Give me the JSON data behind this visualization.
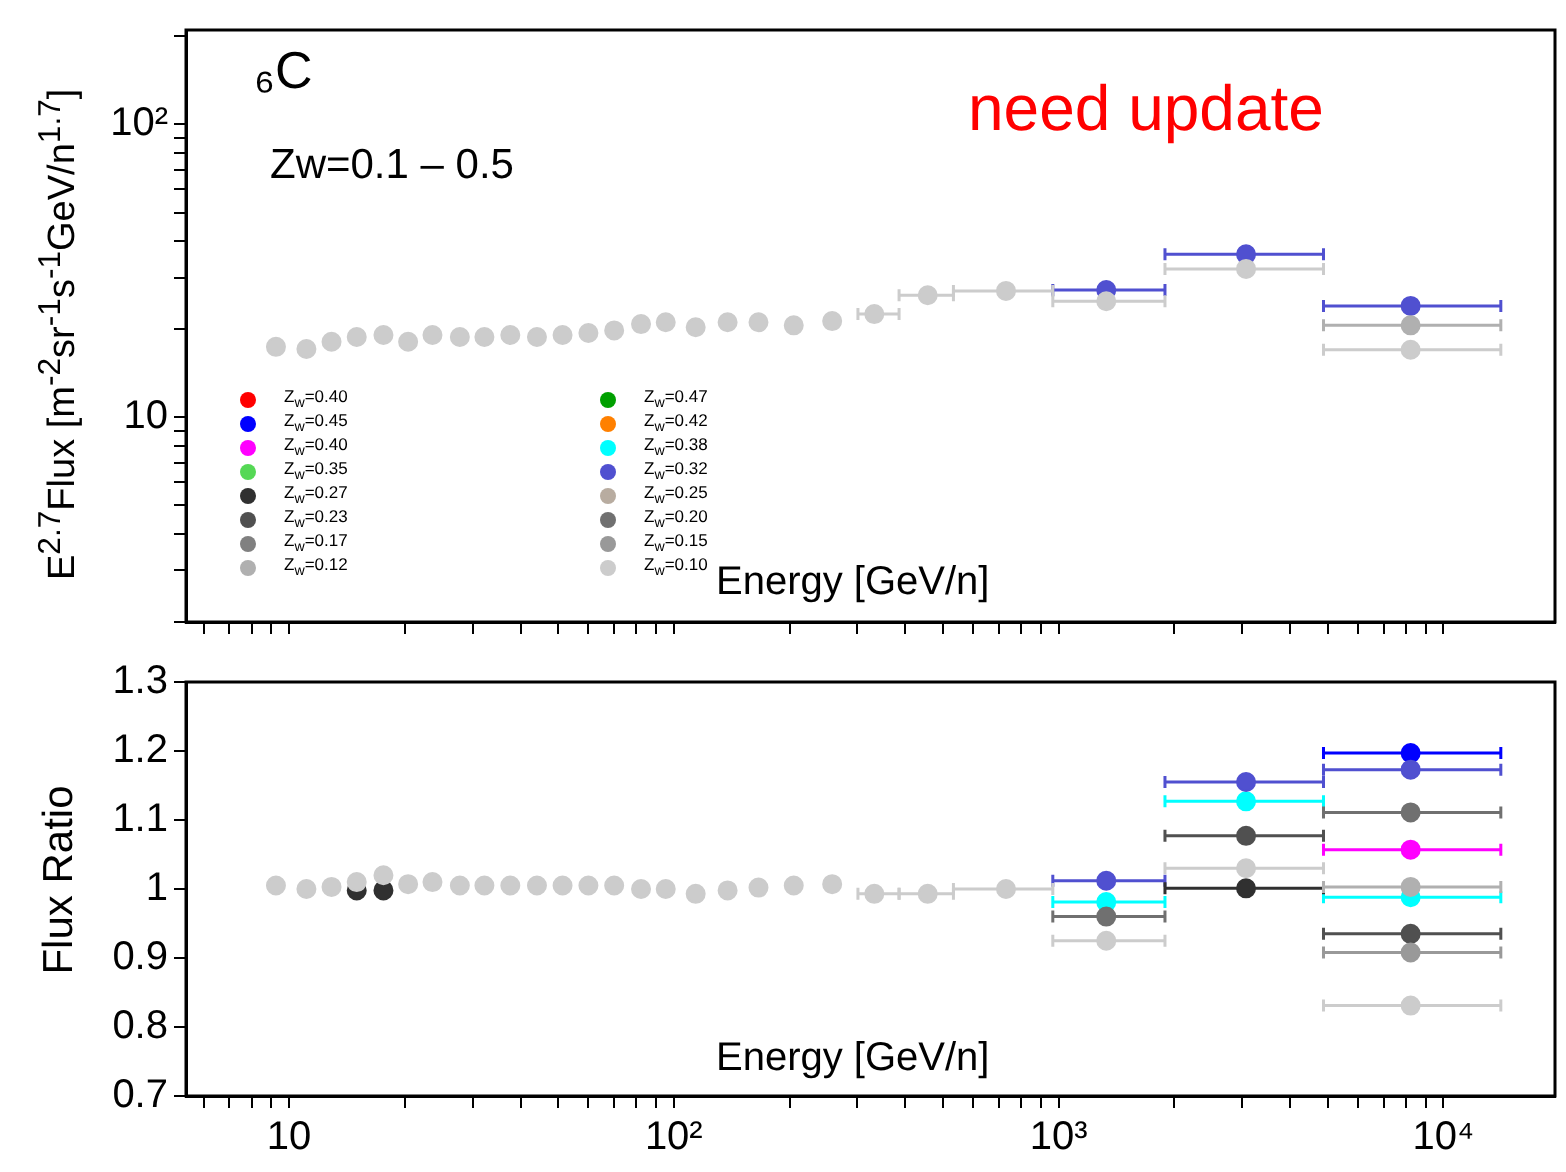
{
  "chart_data": [
    {
      "type": "scatter",
      "xlabel": "Energy [GeV/n]",
      "ylabel": "E$^{2.7}$Flux [m$^{-2}$sr$^{-1}$s$^{-1}$GeV/n$^{1.7}$]",
      "annotations": [
        "₆C",
        "Zw=0.1 – 0.5",
        "need update"
      ],
      "log": "xy",
      "xlim": [
        5.4,
        19500
      ],
      "ylim": [
        2,
        210
      ],
      "tick_labels": "y",
      "legend": "bottom left",
      "marker": "circle",
      "xticks": [
        {
          "value": 6,
          "label": null
        },
        {
          "value": 7,
          "label": null
        },
        {
          "value": 8,
          "label": null
        },
        {
          "value": 9,
          "label": null
        },
        {
          "value": 10,
          "label": null
        },
        {
          "value": 20,
          "label": null
        },
        {
          "value": 30,
          "label": null
        },
        {
          "value": 40,
          "label": null
        },
        {
          "value": 50,
          "label": null
        },
        {
          "value": 60,
          "label": null
        },
        {
          "value": 70,
          "label": null
        },
        {
          "value": 80,
          "label": null
        },
        {
          "value": 90,
          "label": null
        },
        {
          "value": 100,
          "label": null
        },
        {
          "value": 200,
          "label": null
        },
        {
          "value": 300,
          "label": null
        },
        {
          "value": 400,
          "label": null
        },
        {
          "value": 500,
          "label": null
        },
        {
          "value": 600,
          "label": null
        },
        {
          "value": 700,
          "label": null
        },
        {
          "value": 800,
          "label": null
        },
        {
          "value": 900,
          "label": null
        },
        {
          "value": 1000,
          "label": null
        },
        {
          "value": 2000,
          "label": null
        },
        {
          "value": 3000,
          "label": null
        },
        {
          "value": 4000,
          "label": null
        },
        {
          "value": 5000,
          "label": null
        },
        {
          "value": 6000,
          "label": null
        },
        {
          "value": 7000,
          "label": null
        },
        {
          "value": 8000,
          "label": null
        },
        {
          "value": 9000,
          "label": null
        },
        {
          "value": 10000,
          "label": null
        }
      ],
      "yticks": [
        {
          "value": 2,
          "label": null
        },
        {
          "value": 3,
          "label": null
        },
        {
          "value": 4,
          "label": null
        },
        {
          "value": 5,
          "label": null
        },
        {
          "value": 6,
          "label": null
        },
        {
          "value": 7,
          "label": null
        },
        {
          "value": 8,
          "label": null
        },
        {
          "value": 9,
          "label": null
        },
        10,
        {
          "value": 20,
          "label": null
        },
        {
          "value": 30,
          "label": null
        },
        {
          "value": 40,
          "label": null
        },
        {
          "value": 50,
          "label": null
        },
        {
          "value": 60,
          "label": null
        },
        {
          "value": 70,
          "label": null
        },
        {
          "value": 80,
          "label": null
        },
        {
          "value": 90,
          "label": null
        },
        {
          "value": 100,
          "label": "10²"
        },
        {
          "value": 200,
          "label": null
        }
      ],
      "x": [
        9.25,
        11.1,
        12.9,
        15.0,
        17.6,
        20.4,
        23.6,
        27.8,
        32.2,
        37.6,
        44.1,
        51.4,
        60.0,
        70.0,
        82.2,
        95.3,
        114,
        138,
        166,
        205,
        258,
        332,
        457,
        730,
        1330,
        3070,
        8220
      ],
      "series": [
        {
          "name": "Z$_{w}$=0.40",
          "color": "#ff0000",
          "values": [
            null,
            null,
            null,
            null,
            null,
            null,
            null,
            null,
            null,
            null,
            null,
            null,
            null,
            null,
            null,
            null,
            null,
            null,
            null,
            null,
            null,
            null,
            null,
            null,
            null,
            null,
            null
          ]
        },
        {
          "name": "Z$_{w}$=0.47",
          "color": "#00a000",
          "values": [
            null,
            null,
            null,
            null,
            null,
            null,
            null,
            null,
            null,
            null,
            null,
            null,
            null,
            null,
            null,
            null,
            null,
            null,
            null,
            null,
            null,
            null,
            null,
            null,
            null,
            null,
            null
          ]
        },
        {
          "name": "Z$_{w}$=0.45",
          "color": "#0000ff",
          "values": [
            null,
            null,
            null,
            null,
            null,
            null,
            null,
            null,
            null,
            null,
            null,
            null,
            null,
            null,
            null,
            null,
            null,
            null,
            null,
            null,
            null,
            null,
            null,
            null,
            null,
            null,
            null
          ]
        },
        {
          "name": "Z$_{w}$=0.42",
          "color": "#ff8000",
          "values": [
            null,
            null,
            null,
            null,
            null,
            null,
            null,
            null,
            null,
            null,
            null,
            null,
            null,
            null,
            null,
            null,
            null,
            null,
            null,
            null,
            null,
            null,
            null,
            null,
            null,
            null,
            null
          ]
        },
        {
          "name": "Z$_{w}$=0.40",
          "color": "#ff00ff",
          "values": [
            null,
            null,
            null,
            null,
            null,
            null,
            null,
            null,
            null,
            null,
            null,
            null,
            null,
            null,
            null,
            null,
            null,
            null,
            null,
            null,
            null,
            null,
            null,
            null,
            null,
            null,
            null
          ]
        },
        {
          "name": "Z$_{w}$=0.38",
          "color": "#00ffff",
          "values": [
            null,
            null,
            null,
            null,
            null,
            null,
            null,
            null,
            null,
            null,
            null,
            null,
            null,
            null,
            null,
            null,
            null,
            null,
            null,
            null,
            null,
            null,
            null,
            null,
            null,
            null,
            null
          ]
        },
        {
          "name": "Z$_{w}$=0.35",
          "color": "#55d855",
          "values": [
            null,
            null,
            null,
            null,
            null,
            null,
            null,
            null,
            null,
            null,
            null,
            null,
            null,
            null,
            null,
            null,
            null,
            null,
            null,
            null,
            null,
            null,
            null,
            null,
            null,
            null,
            null
          ]
        },
        {
          "name": "Z$_{w}$=0.32",
          "color": "#5050d0",
          "values": [
            null,
            null,
            null,
            null,
            null,
            null,
            null,
            null,
            null,
            null,
            null,
            null,
            null,
            null,
            null,
            null,
            null,
            null,
            null,
            null,
            null,
            null,
            null,
            null,
            27.2,
            36.0,
            24.0
          ],
          "xerrors": [
            null,
            null,
            null,
            null,
            null,
            null,
            null,
            null,
            null,
            null,
            null,
            null,
            null,
            null,
            null,
            null,
            null,
            null,
            null,
            null,
            null,
            null,
            null,
            null,
            [
              966,
              1890
            ],
            [
              1890,
              4880
            ],
            [
              4880,
              14100
            ]
          ]
        },
        {
          "name": "Z$_{w}$=0.27",
          "color": "#303030",
          "values": [
            null,
            null,
            null,
            null,
            null,
            null,
            null,
            null,
            null,
            null,
            null,
            null,
            null,
            null,
            null,
            null,
            null,
            null,
            null,
            null,
            null,
            null,
            null,
            null,
            null,
            null,
            null
          ]
        },
        {
          "name": "Z$_{w}$=0.25",
          "color": "#b8aca0",
          "values": [
            null,
            null,
            null,
            null,
            null,
            null,
            null,
            null,
            null,
            null,
            null,
            null,
            null,
            null,
            null,
            null,
            null,
            null,
            null,
            null,
            null,
            null,
            null,
            null,
            null,
            null,
            null
          ]
        },
        {
          "name": "Z$_{w}$=0.23",
          "color": "#505050",
          "values": [
            null,
            null,
            null,
            null,
            null,
            null,
            null,
            null,
            null,
            null,
            null,
            null,
            null,
            null,
            null,
            null,
            null,
            null,
            null,
            null,
            null,
            null,
            null,
            null,
            null,
            null,
            null
          ]
        },
        {
          "name": "Z$_{w}$=0.20",
          "color": "#707070",
          "values": [
            null,
            null,
            null,
            null,
            null,
            null,
            null,
            null,
            null,
            null,
            null,
            null,
            null,
            null,
            null,
            null,
            null,
            null,
            null,
            null,
            null,
            null,
            null,
            null,
            null,
            null,
            null
          ]
        },
        {
          "name": "Z$_{w}$=0.17",
          "color": "#808080",
          "values": [
            null,
            null,
            null,
            null,
            null,
            null,
            null,
            null,
            null,
            null,
            null,
            null,
            null,
            null,
            null,
            null,
            null,
            null,
            null,
            null,
            null,
            null,
            null,
            null,
            null,
            null,
            null
          ]
        },
        {
          "name": "Z$_{w}$=0.15",
          "color": "#999999",
          "values": [
            null,
            null,
            null,
            null,
            null,
            null,
            null,
            null,
            null,
            null,
            null,
            null,
            null,
            null,
            null,
            null,
            null,
            null,
            null,
            null,
            null,
            null,
            null,
            null,
            null,
            null,
            null
          ]
        },
        {
          "name": "Z$_{w}$=0.12",
          "color": "#b0b0b0",
          "values": [
            null,
            null,
            null,
            null,
            null,
            null,
            null,
            null,
            null,
            null,
            null,
            null,
            null,
            null,
            null,
            null,
            null,
            null,
            null,
            null,
            null,
            null,
            null,
            null,
            null,
            null,
            20.6
          ],
          "xerrors": [
            null,
            null,
            null,
            null,
            null,
            null,
            null,
            null,
            null,
            null,
            null,
            null,
            null,
            null,
            null,
            null,
            null,
            null,
            null,
            null,
            null,
            null,
            null,
            null,
            null,
            null,
            [
              4880,
              14100
            ]
          ]
        },
        {
          "name": "Z$_{w}$=0.10",
          "color": "#cccccc",
          "values": [
            17.4,
            17.1,
            18.1,
            18.8,
            19.1,
            18.1,
            19.1,
            18.8,
            18.8,
            19.1,
            18.8,
            19.1,
            19.4,
            19.8,
            20.8,
            21.1,
            20.3,
            21.1,
            21.1,
            20.6,
            21.3,
            22.5,
            26.1,
            27.0,
            24.9,
            32.1,
            17.0
          ],
          "xerrors": [
            null,
            null,
            null,
            null,
            null,
            null,
            null,
            null,
            null,
            null,
            null,
            null,
            null,
            null,
            null,
            null,
            null,
            null,
            null,
            null,
            null,
            [
              301,
              385
            ],
            [
              385,
              533
            ],
            [
              533,
              966
            ],
            [
              966,
              1890
            ],
            [
              1890,
              4880
            ],
            [
              4880,
              14100
            ]
          ]
        }
      ]
    },
    {
      "type": "scatter",
      "xlabel": "Energy [GeV/n]",
      "ylabel": "Flux Ratio",
      "log": "x",
      "xlim": [
        5.4,
        19500
      ],
      "ylim": [
        0.7,
        1.3
      ],
      "marker": "circle",
      "xticks": [
        {
          "value": 6,
          "label": null
        },
        {
          "value": 7,
          "label": null
        },
        {
          "value": 8,
          "label": null
        },
        {
          "value": 9,
          "label": null
        },
        10,
        {
          "value": 20,
          "label": null
        },
        {
          "value": 30,
          "label": null
        },
        {
          "value": 40,
          "label": null
        },
        {
          "value": 50,
          "label": null
        },
        {
          "value": 60,
          "label": null
        },
        {
          "value": 70,
          "label": null
        },
        {
          "value": 80,
          "label": null
        },
        {
          "value": 90,
          "label": null
        },
        {
          "value": 100,
          "label": "10²"
        },
        {
          "value": 200,
          "label": null
        },
        {
          "value": 300,
          "label": null
        },
        {
          "value": 400,
          "label": null
        },
        {
          "value": 500,
          "label": null
        },
        {
          "value": 600,
          "label": null
        },
        {
          "value": 700,
          "label": null
        },
        {
          "value": 800,
          "label": null
        },
        {
          "value": 900,
          "label": null
        },
        {
          "value": 1000,
          "label": "10³"
        },
        {
          "value": 2000,
          "label": null
        },
        {
          "value": 3000,
          "label": null
        },
        {
          "value": 4000,
          "label": null
        },
        {
          "value": 5000,
          "label": null
        },
        {
          "value": 6000,
          "label": null
        },
        {
          "value": 7000,
          "label": null
        },
        {
          "value": 8000,
          "label": null
        },
        {
          "value": 9000,
          "label": null
        },
        {
          "value": 10000,
          "label": "10⁴"
        }
      ],
      "yticks": [
        0.7,
        0.8,
        0.9,
        1,
        1.1,
        1.2,
        1.3
      ],
      "x": [
        9.25,
        11.1,
        12.9,
        15.0,
        17.6,
        20.4,
        23.6,
        27.8,
        32.2,
        37.6,
        44.1,
        51.4,
        60.0,
        70.0,
        82.2,
        95.3,
        114,
        138,
        166,
        205,
        258,
        332,
        457,
        730,
        1330,
        3070,
        8220
      ],
      "series": [
        {
          "color": "#0000ff",
          "values": [
            null,
            null,
            null,
            null,
            null,
            null,
            null,
            null,
            null,
            null,
            null,
            null,
            null,
            null,
            null,
            null,
            null,
            null,
            null,
            null,
            null,
            null,
            null,
            null,
            null,
            null,
            1.197
          ],
          "xerrors": [
            null,
            null,
            null,
            null,
            null,
            null,
            null,
            null,
            null,
            null,
            null,
            null,
            null,
            null,
            null,
            null,
            null,
            null,
            null,
            null,
            null,
            null,
            null,
            null,
            null,
            null,
            [
              4880,
              14100
            ]
          ]
        },
        {
          "color": "#ff00ff",
          "values": [
            null,
            null,
            null,
            null,
            null,
            null,
            null,
            null,
            null,
            null,
            null,
            null,
            null,
            null,
            null,
            null,
            null,
            null,
            null,
            null,
            null,
            null,
            null,
            null,
            null,
            null,
            1.057
          ],
          "xerrors": [
            null,
            null,
            null,
            null,
            null,
            null,
            null,
            null,
            null,
            null,
            null,
            null,
            null,
            null,
            null,
            null,
            null,
            null,
            null,
            null,
            null,
            null,
            null,
            null,
            null,
            null,
            [
              4880,
              14100
            ]
          ]
        },
        {
          "color": "#00ffff",
          "values": [
            null,
            null,
            null,
            null,
            null,
            null,
            null,
            null,
            null,
            null,
            null,
            null,
            null,
            null,
            null,
            null,
            null,
            null,
            null,
            null,
            null,
            null,
            null,
            null,
            0.981,
            1.127,
            0.988
          ],
          "xerrors": [
            null,
            null,
            null,
            null,
            null,
            null,
            null,
            null,
            null,
            null,
            null,
            null,
            null,
            null,
            null,
            null,
            null,
            null,
            null,
            null,
            null,
            null,
            null,
            null,
            [
              966,
              1890
            ],
            [
              1890,
              4880
            ],
            [
              4880,
              14100
            ]
          ]
        },
        {
          "color": "#5050d0",
          "values": [
            null,
            null,
            null,
            null,
            null,
            null,
            null,
            null,
            null,
            null,
            null,
            null,
            null,
            null,
            null,
            null,
            null,
            null,
            null,
            null,
            null,
            null,
            null,
            null,
            1.012,
            1.155,
            1.173
          ],
          "xerrors": [
            null,
            null,
            null,
            null,
            null,
            null,
            null,
            null,
            null,
            null,
            null,
            null,
            null,
            null,
            null,
            null,
            null,
            null,
            null,
            null,
            null,
            null,
            null,
            null,
            [
              966,
              1890
            ],
            [
              1890,
              4880
            ],
            [
              4880,
              14100
            ]
          ]
        },
        {
          "color": "#303030",
          "values": [
            null,
            null,
            null,
            0.998,
            0.998,
            null,
            null,
            null,
            null,
            null,
            null,
            null,
            null,
            null,
            null,
            null,
            null,
            null,
            null,
            null,
            null,
            null,
            null,
            null,
            null,
            1.001,
            null
          ],
          "xerrors": [
            null,
            null,
            null,
            null,
            null,
            null,
            null,
            null,
            null,
            null,
            null,
            null,
            null,
            null,
            null,
            null,
            null,
            null,
            null,
            null,
            null,
            null,
            null,
            null,
            null,
            [
              1890,
              4880
            ],
            null
          ]
        },
        {
          "color": "#505050",
          "values": [
            null,
            null,
            null,
            null,
            null,
            null,
            null,
            null,
            null,
            null,
            null,
            null,
            null,
            null,
            null,
            null,
            null,
            null,
            null,
            null,
            null,
            null,
            null,
            null,
            null,
            1.077,
            0.935
          ],
          "xerrors": [
            null,
            null,
            null,
            null,
            null,
            null,
            null,
            null,
            null,
            null,
            null,
            null,
            null,
            null,
            null,
            null,
            null,
            null,
            null,
            null,
            null,
            null,
            null,
            null,
            null,
            [
              1890,
              4880
            ],
            [
              4880,
              14100
            ]
          ]
        },
        {
          "color": "#707070",
          "values": [
            null,
            null,
            null,
            null,
            null,
            null,
            null,
            null,
            null,
            null,
            null,
            null,
            null,
            null,
            null,
            null,
            null,
            null,
            null,
            null,
            null,
            null,
            null,
            null,
            0.96,
            null,
            1.111
          ],
          "xerrors": [
            null,
            null,
            null,
            null,
            null,
            null,
            null,
            null,
            null,
            null,
            null,
            null,
            null,
            null,
            null,
            null,
            null,
            null,
            null,
            null,
            null,
            null,
            null,
            null,
            [
              966,
              1890
            ],
            null,
            [
              4880,
              14100
            ]
          ]
        },
        {
          "color": "#999999",
          "values": [
            null,
            null,
            null,
            null,
            null,
            null,
            null,
            null,
            null,
            null,
            null,
            null,
            null,
            null,
            null,
            null,
            null,
            null,
            null,
            null,
            null,
            null,
            null,
            null,
            null,
            null,
            0.908
          ],
          "xerrors": [
            null,
            null,
            null,
            null,
            null,
            null,
            null,
            null,
            null,
            null,
            null,
            null,
            null,
            null,
            null,
            null,
            null,
            null,
            null,
            null,
            null,
            null,
            null,
            null,
            null,
            null,
            [
              4880,
              14100
            ]
          ]
        },
        {
          "color": "#b0b0b0",
          "values": [
            null,
            null,
            null,
            null,
            null,
            null,
            null,
            null,
            null,
            null,
            null,
            null,
            null,
            null,
            null,
            null,
            null,
            null,
            null,
            null,
            null,
            null,
            null,
            null,
            null,
            null,
            1.003
          ],
          "xerrors": [
            null,
            null,
            null,
            null,
            null,
            null,
            null,
            null,
            null,
            null,
            null,
            null,
            null,
            null,
            null,
            null,
            null,
            null,
            null,
            null,
            null,
            null,
            null,
            null,
            null,
            null,
            [
              4880,
              14100
            ]
          ]
        },
        {
          "color": "#cccccc",
          "values": [
            1.005,
            1.0,
            1.003,
            1.01,
            1.02,
            1.007,
            1.01,
            1.005,
            1.005,
            1.005,
            1.005,
            1.005,
            1.005,
            1.005,
            1.0,
            1.0,
            0.993,
            0.998,
            1.002,
            1.005,
            1.007,
            0.993,
            0.993,
            1.0,
            0.925,
            1.03,
            0.831
          ],
          "xerrors": [
            null,
            null,
            null,
            null,
            null,
            null,
            null,
            null,
            null,
            null,
            null,
            null,
            null,
            null,
            null,
            null,
            null,
            null,
            null,
            null,
            null,
            [
              301,
              385
            ],
            [
              385,
              533
            ],
            [
              533,
              966
            ],
            [
              966,
              1890
            ],
            [
              1890,
              4880
            ],
            [
              4880,
              14100
            ]
          ]
        }
      ]
    }
  ]
}
